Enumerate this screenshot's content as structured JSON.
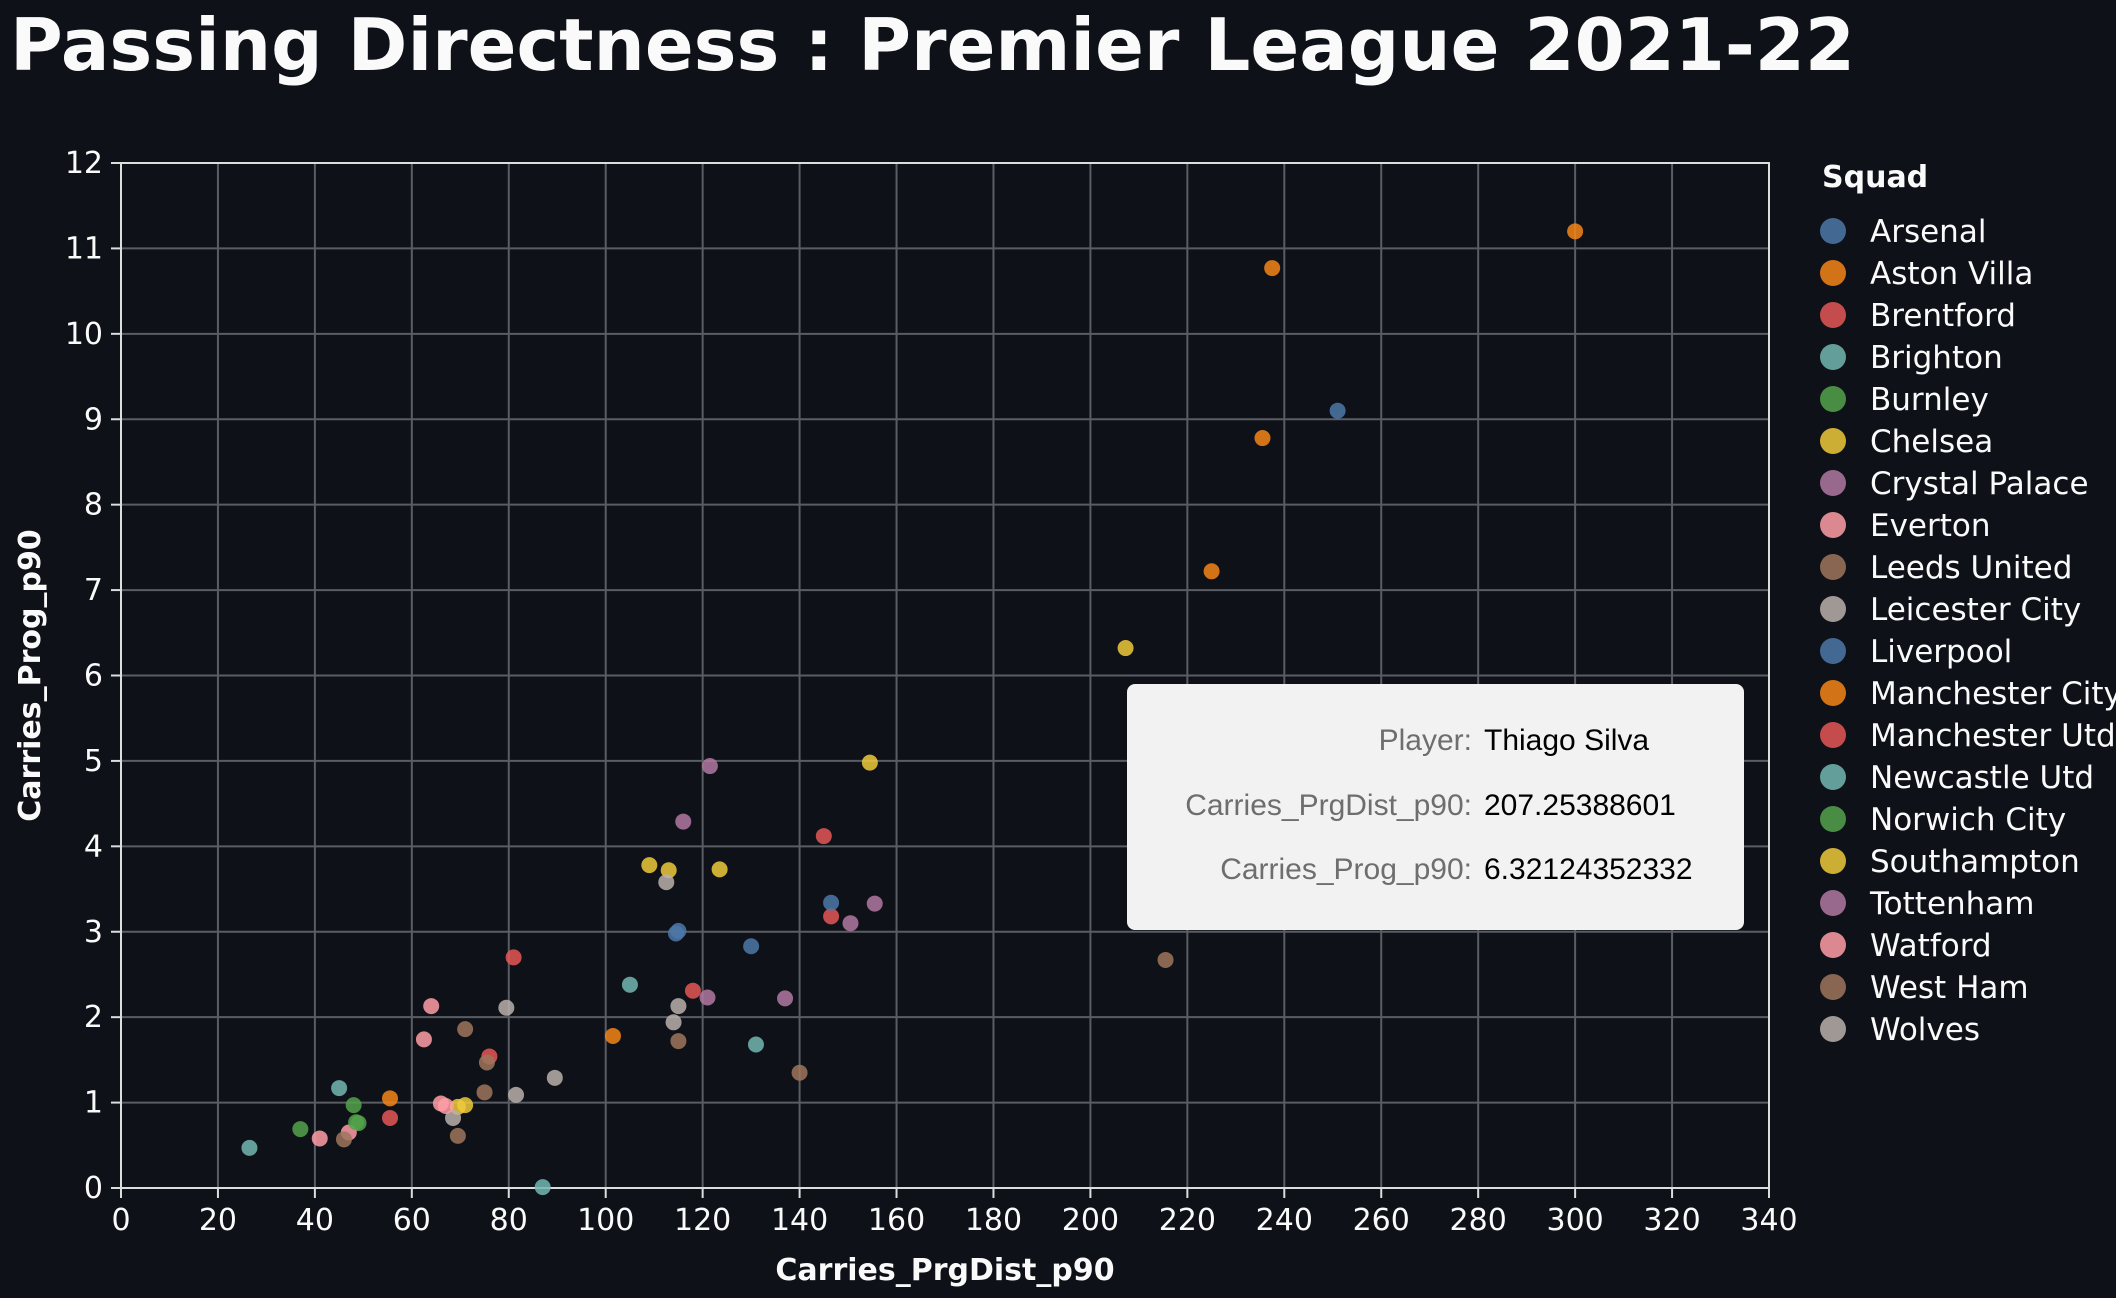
{
  "title": "Passing Directness : Premier League 2021-22",
  "chart_data": {
    "type": "scatter",
    "xlabel": "Carries_PrgDist_p90",
    "ylabel": "Carries_Prog_p90",
    "xlim": [
      0,
      340
    ],
    "ylim": [
      0,
      12
    ],
    "x_ticks": [
      0,
      20,
      40,
      60,
      80,
      100,
      120,
      140,
      160,
      180,
      200,
      220,
      240,
      260,
      280,
      300,
      320,
      340
    ],
    "y_ticks": [
      0,
      1,
      2,
      3,
      4,
      5,
      6,
      7,
      8,
      9,
      10,
      11,
      12
    ],
    "grid": true,
    "legend_title": "Squad",
    "legend_position": "right",
    "series": [
      {
        "name": "Arsenal",
        "color": "#4c78a8",
        "points": [
          [
            251,
            9.1
          ],
          [
            130,
            2.83
          ]
        ]
      },
      {
        "name": "Aston Villa",
        "color": "#f58518",
        "points": [
          [
            300,
            11.2
          ],
          [
            237.5,
            10.77
          ],
          [
            235.5,
            8.78
          ],
          [
            225,
            7.22
          ],
          [
            101.5,
            1.78
          ]
        ]
      },
      {
        "name": "Brentford",
        "color": "#e45756",
        "points": [
          [
            145,
            4.12
          ],
          [
            146.5,
            3.18
          ],
          [
            118,
            2.31
          ],
          [
            81,
            2.7
          ],
          [
            55.5,
            0.82
          ]
        ]
      },
      {
        "name": "Brighton",
        "color": "#72b7b2",
        "points": [
          [
            105,
            2.38
          ],
          [
            131,
            1.68
          ]
        ]
      },
      {
        "name": "Burnley",
        "color": "#54a24b",
        "points": [
          [
            37,
            0.69
          ],
          [
            48,
            0.97
          ],
          [
            49,
            0.76
          ]
        ]
      },
      {
        "name": "Chelsea",
        "color": "#eeca3b",
        "points": [
          [
            207.25388601,
            6.32124352332
          ],
          [
            154.5,
            4.98
          ],
          [
            109,
            3.78
          ],
          [
            113,
            3.72
          ],
          [
            123.5,
            3.73
          ],
          [
            69.5,
            0.95
          ]
        ]
      },
      {
        "name": "Crystal Palace",
        "color": "#b279a2",
        "points": [
          [
            121.5,
            4.94
          ],
          [
            116,
            4.29
          ],
          [
            121,
            2.23
          ],
          [
            137,
            2.22
          ]
        ]
      },
      {
        "name": "Everton",
        "color": "#ff9da6",
        "points": [
          [
            64,
            2.13
          ],
          [
            62.5,
            1.74
          ],
          [
            66,
            0.99
          ],
          [
            47,
            0.65
          ],
          [
            41,
            0.58
          ]
        ]
      },
      {
        "name": "Leeds United",
        "color": "#9d755d",
        "points": [
          [
            215.5,
            2.67
          ],
          [
            140,
            1.35
          ],
          [
            115,
            1.72
          ],
          [
            71,
            1.86
          ],
          [
            75,
            1.12
          ],
          [
            46,
            0.57
          ],
          [
            69.5,
            0.61
          ]
        ]
      },
      {
        "name": "Leicester City",
        "color": "#bab0ac",
        "points": [
          [
            112.5,
            3.58
          ],
          [
            115,
            2.13
          ],
          [
            114,
            1.94
          ],
          [
            79.5,
            2.11
          ],
          [
            68.5,
            0.82
          ]
        ]
      },
      {
        "name": "Liverpool",
        "color": "#4c78a8",
        "points": [
          [
            146.5,
            3.34
          ],
          [
            114.5,
            2.98
          ],
          [
            115,
            3.01
          ]
        ]
      },
      {
        "name": "Manchester City",
        "color": "#f58518",
        "points": [
          [
            55.5,
            1.05
          ]
        ]
      },
      {
        "name": "Manchester Utd",
        "color": "#e45756",
        "points": [
          [
            76,
            1.54
          ]
        ]
      },
      {
        "name": "Newcastle Utd",
        "color": "#72b7b2",
        "points": [
          [
            45,
            1.17
          ],
          [
            26.5,
            0.47
          ],
          [
            87,
            0.01
          ]
        ]
      },
      {
        "name": "Norwich City",
        "color": "#54a24b",
        "points": [
          [
            48.5,
            0.77
          ]
        ]
      },
      {
        "name": "Southampton",
        "color": "#eeca3b",
        "points": [
          [
            71,
            0.97
          ]
        ]
      },
      {
        "name": "Tottenham",
        "color": "#b279a2",
        "points": [
          [
            155.5,
            3.33
          ],
          [
            150.5,
            3.1
          ]
        ]
      },
      {
        "name": "Watford",
        "color": "#ff9da6",
        "points": [
          [
            67,
            0.96
          ]
        ]
      },
      {
        "name": "West Ham",
        "color": "#9d755d",
        "points": [
          [
            75.5,
            1.47
          ]
        ]
      },
      {
        "name": "Wolves",
        "color": "#bab0ac",
        "points": [
          [
            81.5,
            1.09
          ],
          [
            89.5,
            1.29
          ]
        ]
      }
    ]
  },
  "tooltip": {
    "rows": [
      {
        "key": "Player:",
        "value": "Thiago Silva"
      },
      {
        "key": "Carries_PrgDist_p90:",
        "value": "207.25388601"
      },
      {
        "key": "Carries_Prog_p90:",
        "value": "6.32124352332"
      }
    ]
  }
}
